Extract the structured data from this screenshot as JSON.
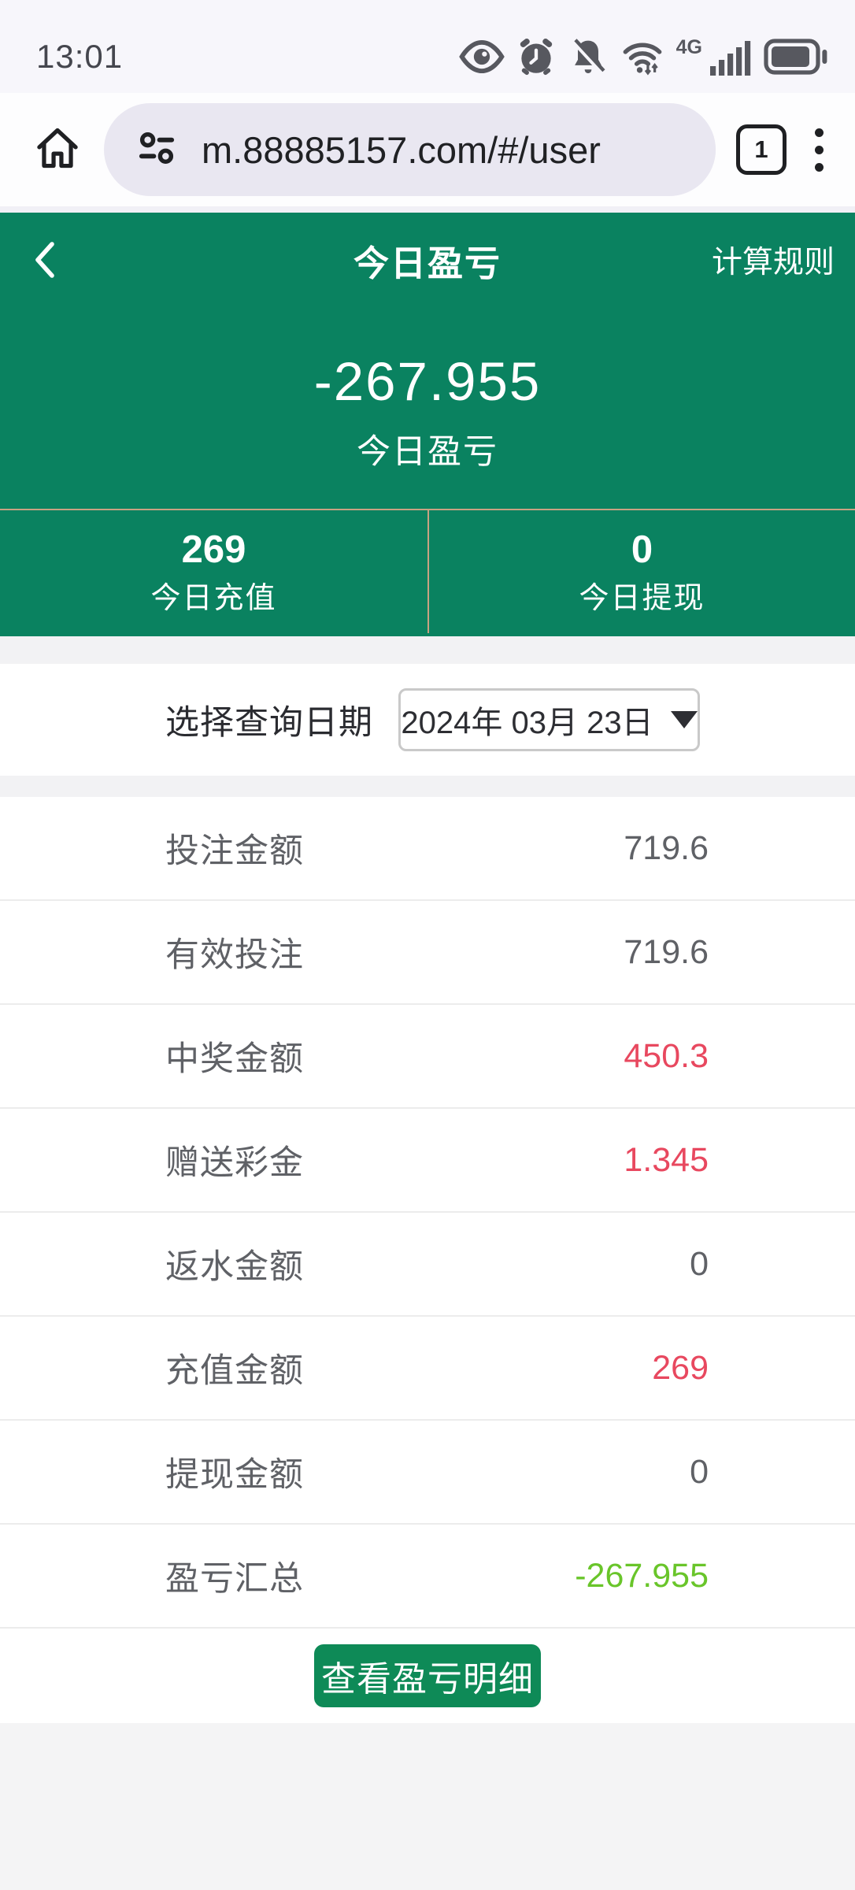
{
  "status_bar": {
    "time": "13:01",
    "network_label": "4G",
    "icons": [
      "eye-icon",
      "alarm-icon",
      "mute-bell-icon",
      "wifi-icon",
      "signal-bars-icon",
      "battery-icon"
    ]
  },
  "browser": {
    "url": "m.88885157.com/#/user",
    "tab_count": "1"
  },
  "header": {
    "back_icon": "chevron-left",
    "title": "今日盈亏",
    "rules_link": "计算规则",
    "amount": "-267.955",
    "amount_label": "今日盈亏",
    "stats": [
      {
        "value": "269",
        "label": "今日充值"
      },
      {
        "value": "0",
        "label": "今日提现"
      }
    ]
  },
  "date_picker": {
    "label": "选择查询日期",
    "value": "2024年 03月 23日"
  },
  "table": {
    "rows": [
      {
        "label": "投注金额",
        "value": "719.6",
        "color": "gray"
      },
      {
        "label": "有效投注",
        "value": "719.6",
        "color": "gray"
      },
      {
        "label": "中奖金额",
        "value": "450.3",
        "color": "pink"
      },
      {
        "label": "赠送彩金",
        "value": "1.345",
        "color": "pink"
      },
      {
        "label": "返水金额",
        "value": "0",
        "color": "gray"
      },
      {
        "label": "充值金额",
        "value": "269",
        "color": "pink"
      },
      {
        "label": "提现金额",
        "value": "0",
        "color": "gray"
      },
      {
        "label": "盈亏汇总",
        "value": "-267.955",
        "color": "lime"
      }
    ]
  },
  "button": {
    "label": "查看盈亏明细"
  },
  "colors": {
    "header_green": "#0a8260",
    "button_green": "#0e8a57",
    "divider_tan": "#c8a282",
    "value_pink": "#e8485f",
    "value_lime": "#69c52a",
    "omnibox_bg": "#e9e7f1",
    "status_bar_bg": "#f7f6fb"
  }
}
